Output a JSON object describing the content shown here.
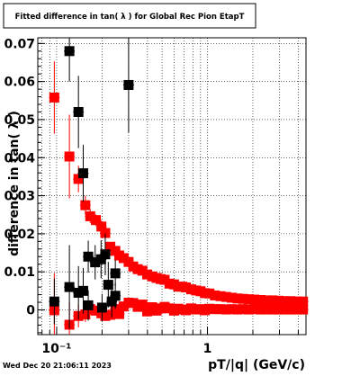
{
  "title": "Fitted difference in tan( λ ) for Global Rec Pion EtapT",
  "footer_timestamp": "Wed Dec 20 21:06:11 2023",
  "chart_data": {
    "type": "scatter",
    "title": "Fitted difference in tan( λ ) for Global Rec Pion EtapT",
    "xlabel": "pT/|q| (GeV/c)",
    "ylabel": "difference in tan( λ )",
    "x_scale": "log",
    "xlim": [
      0.075,
      4.5
    ],
    "ylim": [
      -0.0065,
      0.0715
    ],
    "grid": true,
    "x_ticks": [
      {
        "value": 0.1,
        "label": "10⁻¹"
      },
      {
        "value": 1,
        "label": "1"
      }
    ],
    "y_ticks": [
      {
        "value": 0,
        "label": "0"
      },
      {
        "value": 0.01,
        "label": "0.01"
      },
      {
        "value": 0.02,
        "label": "0.02"
      },
      {
        "value": 0.03,
        "label": "0.03"
      },
      {
        "value": 0.04,
        "label": "0.04"
      },
      {
        "value": 0.05,
        "label": "0.05"
      },
      {
        "value": 0.06,
        "label": "0.06"
      },
      {
        "value": 0.07,
        "label": "0.07"
      }
    ],
    "series": [
      {
        "color": "#ff0000",
        "marker": "square",
        "points": [
          {
            "x": 0.0965,
            "y": 0.0558,
            "err": 0.0095
          },
          {
            "x": 0.0965,
            "y": -0.0001,
            "err": 0.0098
          },
          {
            "x": 0.1215,
            "y": 0.0403,
            "err": 0.011
          },
          {
            "x": 0.1215,
            "y": -0.0039,
            "err": 0.006
          },
          {
            "x": 0.1395,
            "y": 0.0344,
            "err": 0.0035
          },
          {
            "x": 0.1395,
            "y": -0.0016,
            "err": 0.003
          },
          {
            "x": 0.155,
            "y": 0.0275,
            "err": 0.0025
          },
          {
            "x": 0.155,
            "y": -0.0012,
            "err": 0.002
          },
          {
            "x": 0.167,
            "y": 0.0246,
            "err": 0.0018
          },
          {
            "x": 0.167,
            "y": 0.0002,
            "err": 0.0015
          },
          {
            "x": 0.182,
            "y": 0.0236,
            "err": 0.0015
          },
          {
            "x": 0.182,
            "y": -0.0002,
            "err": 0.0013
          },
          {
            "x": 0.198,
            "y": 0.0219,
            "err": 0.0015
          },
          {
            "x": 0.198,
            "y": -0.0009,
            "err": 0.0012
          },
          {
            "x": 0.21,
            "y": 0.0202,
            "err": 0.0012
          },
          {
            "x": 0.21,
            "y": -0.0016,
            "err": 0.001
          },
          {
            "x": 0.227,
            "y": 0.0166,
            "err": 0.001
          },
          {
            "x": 0.227,
            "y": -0.0013,
            "err": 0.001
          },
          {
            "x": 0.245,
            "y": 0.0155,
            "err": 0.0009
          },
          {
            "x": 0.245,
            "y": 0.0002,
            "err": 0.0009
          },
          {
            "x": 0.26,
            "y": 0.0143,
            "err": 0.0008
          },
          {
            "x": 0.26,
            "y": -0.0011,
            "err": 0.0008
          },
          {
            "x": 0.278,
            "y": 0.0136,
            "err": 0.0008
          },
          {
            "x": 0.278,
            "y": 0.0009,
            "err": 0.0008
          },
          {
            "x": 0.3,
            "y": 0.0126,
            "err": 0.0007
          },
          {
            "x": 0.3,
            "y": 0.0019,
            "err": 0.0007
          },
          {
            "x": 0.322,
            "y": 0.0114,
            "err": 0.0007
          },
          {
            "x": 0.322,
            "y": 0.0018,
            "err": 0.0007
          },
          {
            "x": 0.345,
            "y": 0.0107,
            "err": 0.0006
          },
          {
            "x": 0.345,
            "y": 0.0008,
            "err": 0.0006
          },
          {
            "x": 0.37,
            "y": 0.0103,
            "err": 0.0006
          },
          {
            "x": 0.37,
            "y": 0.0014,
            "err": 0.0006
          },
          {
            "x": 0.398,
            "y": 0.0093,
            "err": 0.0006
          },
          {
            "x": 0.398,
            "y": -0.0004,
            "err": 0.0006
          },
          {
            "x": 0.43,
            "y": 0.0088,
            "err": 0.0006
          },
          {
            "x": 0.43,
            "y": 0.0007,
            "err": 0.0006
          },
          {
            "x": 0.46,
            "y": 0.0084,
            "err": 0.0005
          },
          {
            "x": 0.46,
            "y": -0.0002,
            "err": 0.0005
          },
          {
            "x": 0.49,
            "y": 0.0081,
            "err": 0.0005
          },
          {
            "x": 0.49,
            "y": 0.0004,
            "err": 0.0005
          },
          {
            "x": 0.52,
            "y": 0.0079,
            "err": 0.0005
          },
          {
            "x": 0.52,
            "y": 0.0008,
            "err": 0.0005
          },
          {
            "x": 0.56,
            "y": 0.0069,
            "err": 0.0005
          },
          {
            "x": 0.56,
            "y": 0.0004,
            "err": 0.0005
          },
          {
            "x": 0.6,
            "y": 0.0067,
            "err": 0.0005
          },
          {
            "x": 0.6,
            "y": -0.0002,
            "err": 0.0005
          },
          {
            "x": 0.64,
            "y": 0.0061,
            "err": 0.0005
          },
          {
            "x": 0.64,
            "y": 0.0003,
            "err": 0.0005
          },
          {
            "x": 0.68,
            "y": 0.0061,
            "err": 0.0005
          },
          {
            "x": 0.68,
            "y": 0.0001,
            "err": 0.0005
          },
          {
            "x": 0.72,
            "y": 0.0059,
            "err": 0.0005
          },
          {
            "x": 0.72,
            "y": -0.0001,
            "err": 0.0005
          },
          {
            "x": 0.78,
            "y": 0.0054,
            "err": 0.0005
          },
          {
            "x": 0.78,
            "y": 0.0004,
            "err": 0.0005
          },
          {
            "x": 0.84,
            "y": 0.0051,
            "err": 0.0005
          },
          {
            "x": 0.84,
            "y": 0.0001,
            "err": 0.0005
          },
          {
            "x": 0.9,
            "y": 0.0049,
            "err": 0.0004
          },
          {
            "x": 0.9,
            "y": 0.0002,
            "err": 0.0004
          },
          {
            "x": 0.96,
            "y": 0.0044,
            "err": 0.0004
          },
          {
            "x": 0.96,
            "y": -0.0001,
            "err": 0.0004
          },
          {
            "x": 1.03,
            "y": 0.0043,
            "err": 0.0004
          },
          {
            "x": 1.03,
            "y": 0.0003,
            "err": 0.0004
          },
          {
            "x": 1.12,
            "y": 0.0038,
            "err": 0.0004
          },
          {
            "x": 1.12,
            "y": 0.0002,
            "err": 0.0004
          },
          {
            "x": 1.22,
            "y": 0.0036,
            "err": 0.0004
          },
          {
            "x": 1.22,
            "y": 0.0002,
            "err": 0.0004
          },
          {
            "x": 1.33,
            "y": 0.0034,
            "err": 0.0004
          },
          {
            "x": 1.33,
            "y": 0.0001,
            "err": 0.0004
          },
          {
            "x": 1.45,
            "y": 0.0032,
            "err": 0.0004
          },
          {
            "x": 1.45,
            "y": 0.0002,
            "err": 0.0004
          },
          {
            "x": 1.58,
            "y": 0.003,
            "err": 0.0004
          },
          {
            "x": 1.58,
            "y": 0.0001,
            "err": 0.0004
          },
          {
            "x": 1.72,
            "y": 0.0029,
            "err": 0.0004
          },
          {
            "x": 1.72,
            "y": 0.0002,
            "err": 0.0004
          },
          {
            "x": 1.88,
            "y": 0.0028,
            "err": 0.0004
          },
          {
            "x": 1.88,
            "y": 0.0001,
            "err": 0.0004
          },
          {
            "x": 2.05,
            "y": 0.0027,
            "err": 0.0004
          },
          {
            "x": 2.05,
            "y": 0.0002,
            "err": 0.0004
          },
          {
            "x": 2.25,
            "y": 0.0026,
            "err": 0.0004
          },
          {
            "x": 2.25,
            "y": 0.0001,
            "err": 0.0004
          },
          {
            "x": 2.46,
            "y": 0.0025,
            "err": 0.0004
          },
          {
            "x": 2.46,
            "y": 0.0001,
            "err": 0.0004
          },
          {
            "x": 2.7,
            "y": 0.0025,
            "err": 0.0004
          },
          {
            "x": 2.7,
            "y": 0.0001,
            "err": 0.0004
          },
          {
            "x": 2.96,
            "y": 0.0024,
            "err": 0.0004
          },
          {
            "x": 2.96,
            "y": 0.0001,
            "err": 0.0004
          },
          {
            "x": 3.25,
            "y": 0.0023,
            "err": 0.0004
          },
          {
            "x": 3.25,
            "y": 0.0001,
            "err": 0.0004
          },
          {
            "x": 3.57,
            "y": 0.0023,
            "err": 0.0004
          },
          {
            "x": 3.57,
            "y": 0.0001,
            "err": 0.0004
          },
          {
            "x": 3.92,
            "y": 0.0022,
            "err": 0.0004
          },
          {
            "x": 3.92,
            "y": 0.0001,
            "err": 0.0004
          },
          {
            "x": 4.3,
            "y": 0.0022,
            "err": 0.0004
          },
          {
            "x": 4.3,
            "y": 0.0001,
            "err": 0.0004
          }
        ]
      },
      {
        "color": "#000000",
        "marker": "square",
        "points": [
          {
            "x": 0.0965,
            "y": 0.0022,
            "err": 0.006
          },
          {
            "x": 0.1215,
            "y": 0.068,
            "err": 0.008
          },
          {
            "x": 0.1215,
            "y": 0.006,
            "err": 0.011
          },
          {
            "x": 0.1395,
            "y": 0.052,
            "err": 0.0095
          },
          {
            "x": 0.1395,
            "y": 0.0045,
            "err": 0.007
          },
          {
            "x": 0.15,
            "y": 0.0359,
            "err": 0.0075
          },
          {
            "x": 0.15,
            "y": 0.005,
            "err": 0.006
          },
          {
            "x": 0.162,
            "y": 0.014,
            "err": 0.0042
          },
          {
            "x": 0.162,
            "y": 0.0012,
            "err": 0.004
          },
          {
            "x": 0.18,
            "y": 0.0125,
            "err": 0.0045
          },
          {
            "x": 0.197,
            "y": 0.0133,
            "err": 0.005
          },
          {
            "x": 0.2,
            "y": 0.0006,
            "err": 0.0036
          },
          {
            "x": 0.21,
            "y": 0.0146,
            "err": 0.0055
          },
          {
            "x": 0.22,
            "y": 0.0066,
            "err": 0.006
          },
          {
            "x": 0.232,
            "y": 0.0022,
            "err": 0.0042
          },
          {
            "x": 0.245,
            "y": 0.0037,
            "err": 0.0034
          },
          {
            "x": 0.245,
            "y": 0.0096,
            "err": 0.0035
          },
          {
            "x": 0.3,
            "y": 0.0591,
            "err": 0.0125
          }
        ]
      }
    ]
  }
}
